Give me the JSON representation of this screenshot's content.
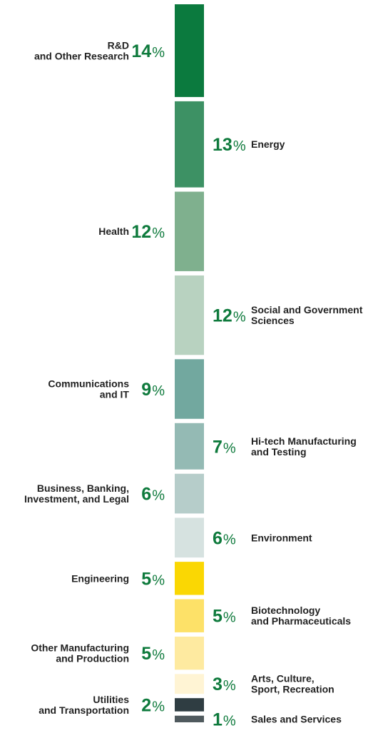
{
  "chart_data": {
    "type": "bar",
    "orientation": "stacked-vertical",
    "percent_sign": "%",
    "segments": [
      {
        "label": [
          "R&D",
          "and Other Research"
        ],
        "value": 14,
        "color": "#0b7a3e",
        "side": "left"
      },
      {
        "label": [
          "Energy"
        ],
        "value": 13,
        "color": "#3d9164",
        "side": "right"
      },
      {
        "label": [
          "Health"
        ],
        "value": 12,
        "color": "#7fb08e",
        "side": "left"
      },
      {
        "label": [
          "Social and Government",
          "Sciences"
        ],
        "value": 12,
        "color": "#b8d2c0",
        "side": "right"
      },
      {
        "label": [
          "Communications",
          "and IT"
        ],
        "value": 9,
        "color": "#72a89f",
        "side": "left"
      },
      {
        "label": [
          "Hi-tech Manufacturing",
          "and Testing"
        ],
        "value": 7,
        "color": "#94bab4",
        "side": "right"
      },
      {
        "label": [
          "Business, Banking,",
          "Investment, and Legal"
        ],
        "value": 6,
        "color": "#b6cdca",
        "side": "left"
      },
      {
        "label": [
          "Environment"
        ],
        "value": 6,
        "color": "#d6e2e0",
        "side": "right"
      },
      {
        "label": [
          "Engineering"
        ],
        "value": 5,
        "color": "#fad703",
        "side": "left"
      },
      {
        "label": [
          "Biotechnology",
          "and Pharmaceuticals"
        ],
        "value": 5,
        "color": "#fde168",
        "side": "right"
      },
      {
        "label": [
          "Other Manufacturing",
          "and Production"
        ],
        "value": 5,
        "color": "#feeaa0",
        "side": "left"
      },
      {
        "label": [
          "Arts, Culture,",
          "Sport, Recreation"
        ],
        "value": 3,
        "color": "#fff4d4",
        "side": "right"
      },
      {
        "label": [
          "Utilities",
          "and Transportation"
        ],
        "value": 2,
        "color": "#2f3d42",
        "side": "left"
      },
      {
        "label": [
          "Sales and Services"
        ],
        "value": 1,
        "color": "#505a5e",
        "side": "right"
      }
    ],
    "value_color": "#0e7a3c"
  }
}
